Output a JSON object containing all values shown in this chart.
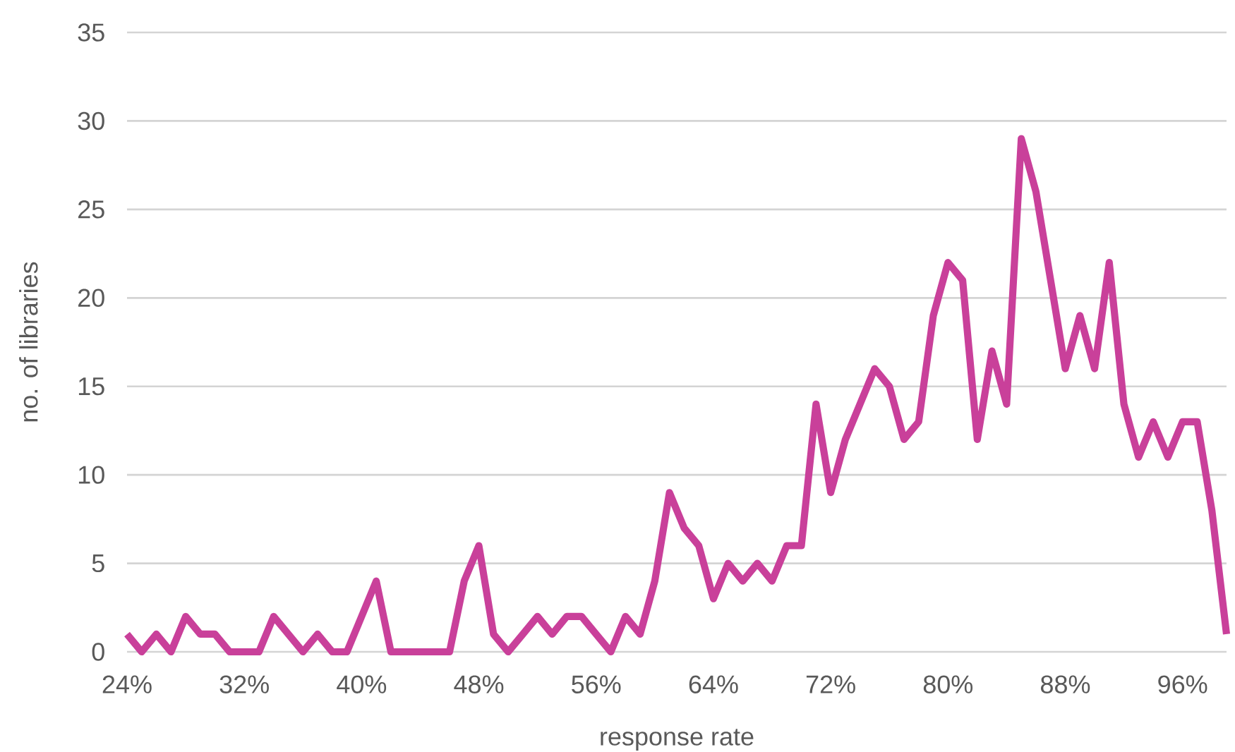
{
  "chart_data": {
    "type": "line",
    "xlabel": "response rate",
    "ylabel": "no. of libraries",
    "categories": [
      "24%",
      null,
      null,
      null,
      null,
      null,
      null,
      null,
      "32%",
      null,
      null,
      null,
      null,
      null,
      null,
      null,
      "40%",
      null,
      null,
      null,
      null,
      null,
      null,
      null,
      "48%",
      null,
      null,
      null,
      null,
      null,
      null,
      null,
      "56%",
      null,
      null,
      null,
      null,
      null,
      null,
      null,
      "64%",
      null,
      null,
      null,
      null,
      null,
      null,
      null,
      "72%",
      null,
      null,
      null,
      null,
      null,
      null,
      null,
      "80%",
      null,
      null,
      null,
      null,
      null,
      null,
      null,
      "88%",
      null,
      null,
      null,
      null,
      null,
      null,
      null,
      "96%",
      null,
      null,
      null
    ],
    "values": [
      1,
      0,
      1,
      0,
      2,
      1,
      1,
      0,
      0,
      0,
      2,
      1,
      0,
      1,
      0,
      0,
      2,
      4,
      0,
      0,
      0,
      0,
      0,
      4,
      6,
      1,
      0,
      1,
      2,
      1,
      2,
      2,
      1,
      0,
      2,
      1,
      4,
      9,
      7,
      6,
      3,
      5,
      4,
      5,
      4,
      6,
      6,
      14,
      9,
      12,
      14,
      16,
      15,
      12,
      13,
      19,
      22,
      21,
      12,
      17,
      14,
      29,
      26,
      21,
      16,
      19,
      16,
      22,
      14,
      11,
      13,
      11,
      13,
      13,
      8,
      1
    ],
    "color": "#c9409a",
    "ylim": [
      0,
      35
    ],
    "yticks": [
      0,
      5,
      10,
      15,
      20,
      25,
      30,
      35
    ],
    "grid": "y",
    "marker": "none",
    "line_style": "solid"
  }
}
